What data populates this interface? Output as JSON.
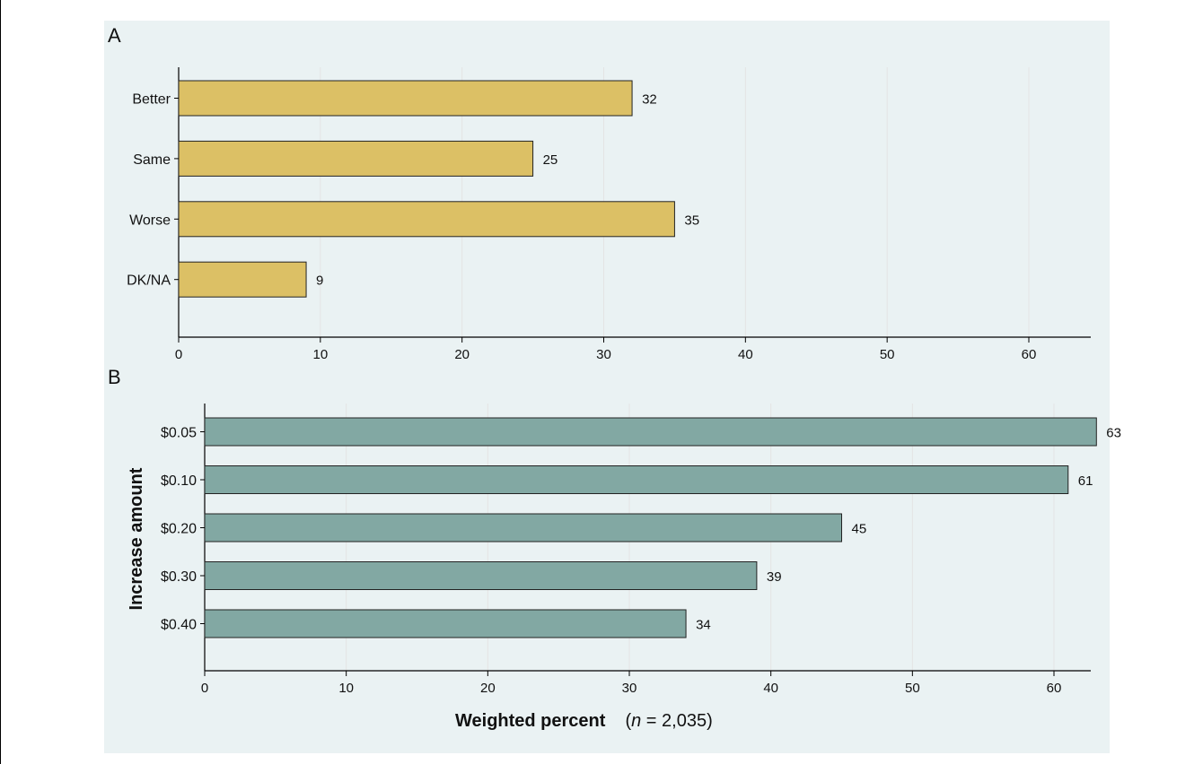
{
  "chart_data": [
    {
      "type": "bar",
      "orientation": "horizontal",
      "panel_label": "A",
      "categories": [
        "Better",
        "Same",
        "Worse",
        "DK/NA"
      ],
      "values": [
        32,
        25,
        35,
        9
      ],
      "data_labels": [
        "32",
        "25",
        "35",
        "9"
      ],
      "xlim": [
        0,
        64
      ],
      "xticks": [
        0,
        10,
        20,
        30,
        40,
        50,
        60
      ],
      "xtick_labels": [
        "0",
        "10",
        "20",
        "30",
        "40",
        "50",
        "60"
      ],
      "ylabel": "",
      "xlabel": "",
      "bar_color": "#dcc065",
      "grid": true
    },
    {
      "type": "bar",
      "orientation": "horizontal",
      "panel_label": "B",
      "categories": [
        "$0.05",
        "$0.10",
        "$0.20",
        "$0.30",
        "$0.40"
      ],
      "values": [
        63,
        61,
        45,
        39,
        34
      ],
      "data_labels": [
        "63",
        "61",
        "45",
        "39",
        "34"
      ],
      "xlim": [
        0,
        64
      ],
      "xticks": [
        0,
        10,
        20,
        30,
        40,
        50,
        60
      ],
      "xtick_labels": [
        "0",
        "10",
        "20",
        "30",
        "40",
        "50",
        "60"
      ],
      "ylabel": "Increase amount",
      "xlabel": "Weighted percent",
      "xlabel_note": {
        "italic": "n",
        "rest": " = 2,035)",
        "open": "("
      },
      "bar_color": "#82a8a3",
      "grid": true
    }
  ]
}
